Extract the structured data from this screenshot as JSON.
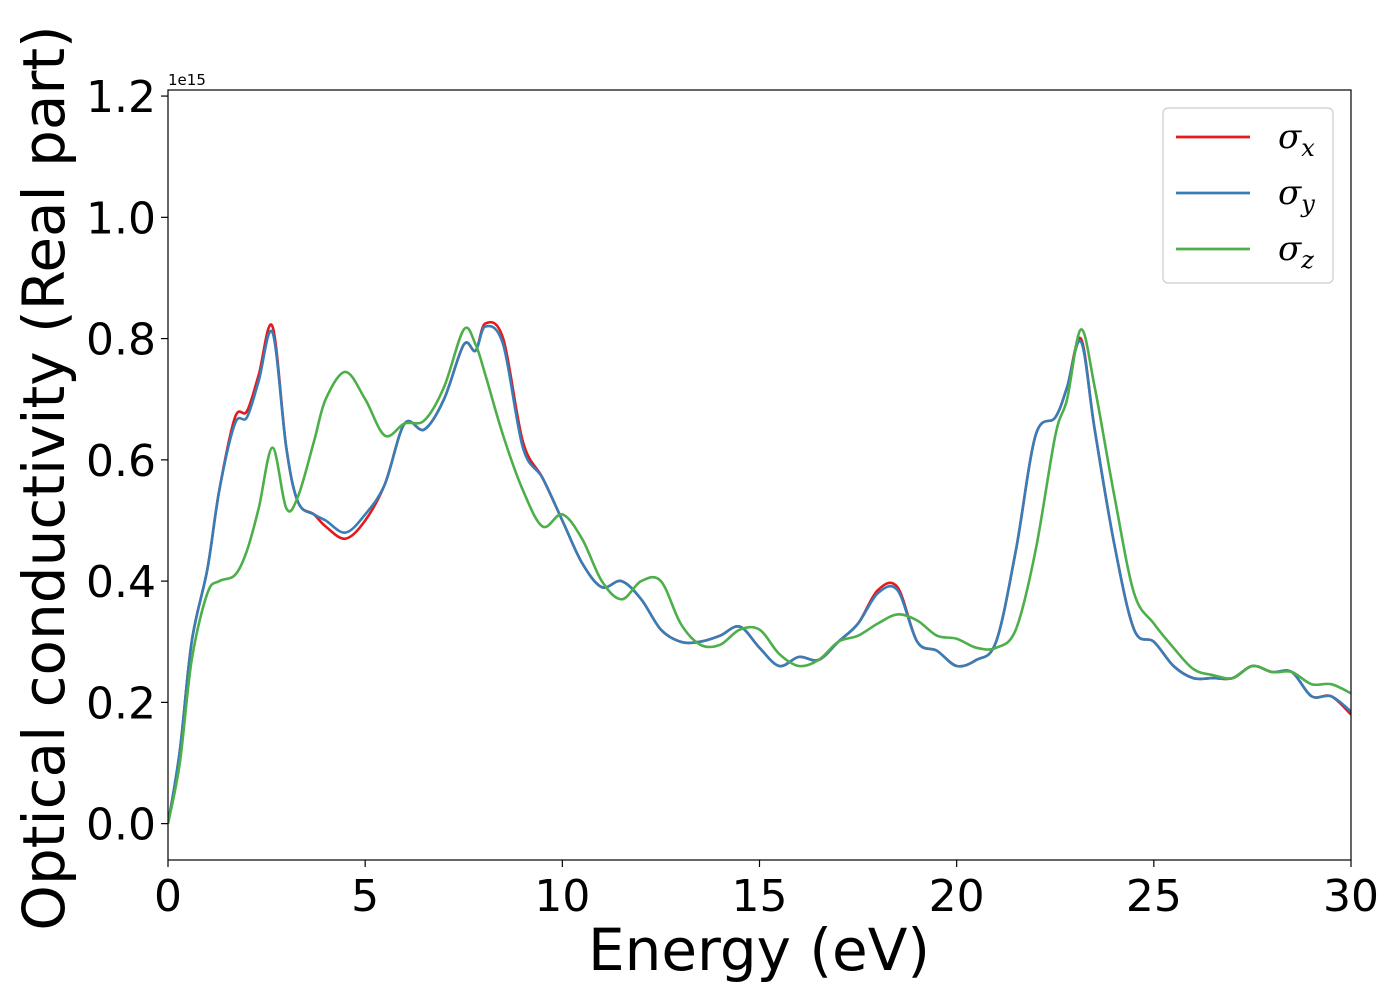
{
  "chart_data": {
    "type": "line",
    "title": "",
    "xlabel": "Energy (eV)",
    "ylabel": "Optical conductivity (Real part)",
    "y_offset_label": "1e15",
    "xlim": [
      0,
      30
    ],
    "ylim": [
      -0.06,
      1.21
    ],
    "xticks": [
      "0",
      "5",
      "10",
      "15",
      "20",
      "25",
      "30"
    ],
    "yticks": [
      "0.0",
      "0.2",
      "0.4",
      "0.6",
      "0.8",
      "1.0",
      "1.2"
    ],
    "grid": false,
    "legend_position": "top-right",
    "x": [
      0,
      0.3,
      0.6,
      1.0,
      1.3,
      1.7,
      2.0,
      2.3,
      2.65,
      3.0,
      3.3,
      3.7,
      4.0,
      4.5,
      5.0,
      5.5,
      6.0,
      6.5,
      7.0,
      7.5,
      7.8,
      8.05,
      8.5,
      9.0,
      9.5,
      10.0,
      10.5,
      11.0,
      11.5,
      12.0,
      12.5,
      13.0,
      13.5,
      14.0,
      14.5,
      15.0,
      15.5,
      16.0,
      16.5,
      17.0,
      17.5,
      18.0,
      18.5,
      19.0,
      19.5,
      20.0,
      20.5,
      21.0,
      21.5,
      22.0,
      22.5,
      22.8,
      23.15,
      23.5,
      24.0,
      24.5,
      25.0,
      25.5,
      26.0,
      26.5,
      27.0,
      27.5,
      28.0,
      28.5,
      29.0,
      29.5,
      30.0
    ],
    "series": [
      {
        "name": "σx",
        "color": "#e41a1c",
        "values": [
          0.0,
          0.12,
          0.3,
          0.42,
          0.55,
          0.67,
          0.68,
          0.74,
          0.82,
          0.62,
          0.53,
          0.51,
          0.49,
          0.47,
          0.5,
          0.56,
          0.66,
          0.65,
          0.7,
          0.79,
          0.78,
          0.825,
          0.8,
          0.63,
          0.57,
          0.5,
          0.43,
          0.39,
          0.4,
          0.37,
          0.32,
          0.3,
          0.3,
          0.31,
          0.325,
          0.29,
          0.26,
          0.275,
          0.27,
          0.3,
          0.33,
          0.385,
          0.39,
          0.3,
          0.285,
          0.26,
          0.27,
          0.3,
          0.45,
          0.64,
          0.67,
          0.72,
          0.8,
          0.65,
          0.46,
          0.32,
          0.3,
          0.26,
          0.24,
          0.24,
          0.24,
          0.26,
          0.25,
          0.25,
          0.21,
          0.21,
          0.18
        ]
      },
      {
        "name": "σy",
        "color": "#377eb8",
        "values": [
          0.0,
          0.12,
          0.3,
          0.42,
          0.55,
          0.66,
          0.67,
          0.73,
          0.81,
          0.62,
          0.53,
          0.51,
          0.5,
          0.48,
          0.51,
          0.56,
          0.66,
          0.65,
          0.7,
          0.79,
          0.78,
          0.82,
          0.79,
          0.62,
          0.57,
          0.5,
          0.43,
          0.39,
          0.4,
          0.37,
          0.32,
          0.3,
          0.3,
          0.31,
          0.325,
          0.29,
          0.26,
          0.275,
          0.27,
          0.3,
          0.33,
          0.38,
          0.385,
          0.3,
          0.285,
          0.26,
          0.27,
          0.3,
          0.45,
          0.64,
          0.67,
          0.72,
          0.795,
          0.65,
          0.46,
          0.32,
          0.3,
          0.26,
          0.24,
          0.24,
          0.24,
          0.26,
          0.25,
          0.25,
          0.21,
          0.21,
          0.185
        ]
      },
      {
        "name": "σz",
        "color": "#4daf4a",
        "values": [
          0.0,
          0.1,
          0.27,
          0.38,
          0.4,
          0.41,
          0.45,
          0.52,
          0.62,
          0.52,
          0.54,
          0.63,
          0.7,
          0.745,
          0.7,
          0.64,
          0.66,
          0.665,
          0.72,
          0.815,
          0.79,
          0.74,
          0.64,
          0.55,
          0.49,
          0.51,
          0.47,
          0.4,
          0.37,
          0.4,
          0.4,
          0.33,
          0.295,
          0.295,
          0.32,
          0.32,
          0.28,
          0.26,
          0.27,
          0.3,
          0.31,
          0.33,
          0.345,
          0.335,
          0.31,
          0.305,
          0.29,
          0.29,
          0.32,
          0.45,
          0.64,
          0.7,
          0.815,
          0.72,
          0.54,
          0.38,
          0.33,
          0.29,
          0.255,
          0.245,
          0.24,
          0.26,
          0.25,
          0.25,
          0.23,
          0.23,
          0.215
        ]
      }
    ]
  }
}
